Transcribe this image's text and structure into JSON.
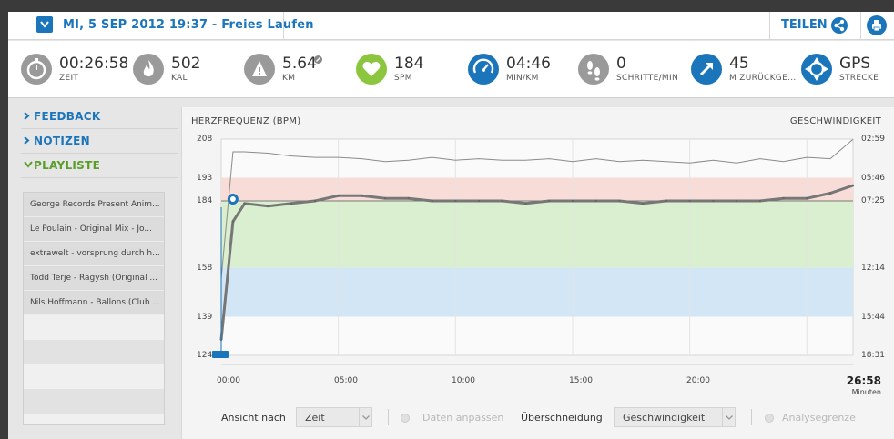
{
  "header": {
    "date_title": "MI, 5 SEP 2012 19:37 - Freies Laufen",
    "share_label": "TEILEN"
  },
  "stats": [
    {
      "icon": "stopwatch-icon",
      "value": "00:26:58",
      "label": "ZEIT",
      "color": "#9a9a9a"
    },
    {
      "icon": "flame-icon",
      "value": "502",
      "label": "KAL",
      "color": "#9a9a9a"
    },
    {
      "icon": "terrain-icon",
      "value": "5.64",
      "label": "KM",
      "color": "#9a9a9a"
    },
    {
      "icon": "heart-icon",
      "value": "184",
      "label": "SPM",
      "color": "#8cc63f"
    },
    {
      "icon": "speedometer-icon",
      "value": "04:46",
      "label": "MIN/KM",
      "color": "#1b75bb"
    },
    {
      "icon": "footprints-icon",
      "value": "0",
      "label": "SCHRITTE/MIN",
      "color": "#9a9a9a"
    },
    {
      "icon": "elevation-arrow-icon",
      "value": "45",
      "label": "M ZURÜCKGE...",
      "color": "#1b75bb"
    },
    {
      "icon": "gps-target-icon",
      "value": "GPS",
      "label": "STRECKE",
      "color": "#1b75bb"
    }
  ],
  "sidebar": {
    "items": [
      {
        "label": "FEEDBACK"
      },
      {
        "label": "NOTIZEN"
      },
      {
        "label": "PLAYLISTE"
      }
    ],
    "playlist": [
      "George Records Present Anim...",
      "Le Poulain - Original Mix - Jo...",
      "extrawelt - vorsprung durch h...",
      "Todd Terje - Ragysh (Original ...",
      "Nils Hoffmann - Ballons (Club ..."
    ]
  },
  "chart": {
    "left_title": "HERZFREQUENZ (BPM)",
    "right_title": "GESCHWINDIGKEIT",
    "left_ticks": [
      "208",
      "193",
      "184",
      "158",
      "139",
      "124"
    ],
    "right_ticks": [
      "02:59",
      "05:46",
      "07:25",
      "12:14",
      "15:44",
      "18:31"
    ],
    "x_ticks": [
      "00:00",
      "05:00",
      "10:00",
      "15:00",
      "20:00"
    ],
    "duration_value": "26:58",
    "duration_unit": "Minuten"
  },
  "chart_data": {
    "type": "line",
    "x": [
      0,
      0.5,
      1,
      2,
      3,
      4,
      5,
      6,
      7,
      8,
      9,
      10,
      11,
      12,
      13,
      14,
      15,
      16,
      17,
      18,
      19,
      20,
      21,
      22,
      23,
      24,
      25,
      26,
      26.97
    ],
    "series": [
      {
        "name": "HERZFREQUENZ (BPM)",
        "values": [
          130,
          176,
          183,
          182,
          183,
          184,
          186,
          186,
          185,
          185,
          184,
          184,
          184,
          184,
          183,
          184,
          184,
          184,
          184,
          183,
          184,
          184,
          184,
          184,
          184,
          185,
          185,
          187,
          190
        ]
      },
      {
        "name": "GESCHWINDIGKEIT",
        "values": [
          13.0,
          3.9,
          3.9,
          4.0,
          4.2,
          4.3,
          4.3,
          4.4,
          4.6,
          4.5,
          4.3,
          4.5,
          4.4,
          4.5,
          4.5,
          4.4,
          4.6,
          4.4,
          4.6,
          4.5,
          4.6,
          4.7,
          4.5,
          4.7,
          4.4,
          4.6,
          4.3,
          4.4,
          3.0
        ]
      }
    ],
    "ylim_left": [
      124,
      208
    ],
    "zones_bpm": [
      [
        184,
        193
      ],
      [
        158,
        184
      ],
      [
        139,
        158
      ]
    ],
    "zone_colors": [
      "#f8dcd8",
      "#d9efcf",
      "#d2e6f6"
    ],
    "target_line_bpm": 184,
    "xlim_minutes": [
      0,
      26.97
    ]
  },
  "controls": {
    "view_label": "Ansicht nach",
    "view_value": "Zeit",
    "fit_label": "Daten anpassen",
    "overlay_label": "Überschneidung",
    "overlay_value": "Geschwindigkeit",
    "analysis_label": "Analysegrenze"
  }
}
